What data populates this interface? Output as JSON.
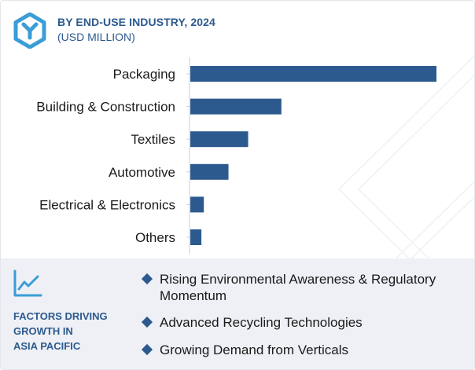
{
  "header": {
    "title": "BY END-USE INDUSTRY, 2024",
    "subtitle": "(USD MILLION)"
  },
  "colors": {
    "accent": "#2d5a8e",
    "bar": "#2d5a8e",
    "panel_bg": "#eef0f5"
  },
  "icons": {
    "logo": "hexagon-y-logo-icon",
    "trend": "line-chart-icon",
    "bullet": "diamond-bullet-icon"
  },
  "chart_data": {
    "type": "bar",
    "orientation": "horizontal",
    "title": "BY END-USE INDUSTRY, 2024",
    "subtitle": "(USD MILLION)",
    "categories": [
      "Packaging",
      "Building & Construction",
      "Textiles",
      "Automotive",
      "Electrical & Electronics",
      "Others"
    ],
    "values": [
      100,
      37,
      23.5,
      15.5,
      5.5,
      4.5
    ],
    "xlim": [
      0,
      100
    ],
    "grid": false,
    "axis_values_shown": false
  },
  "factors": {
    "title_lines": [
      "FACTORS DRIVING",
      "GROWTH IN",
      "ASIA PACIFIC"
    ],
    "items": [
      "Rising Environmental Awareness & Regulatory Momentum",
      "Advanced Recycling Technologies",
      "Growing Demand from Verticals"
    ]
  }
}
